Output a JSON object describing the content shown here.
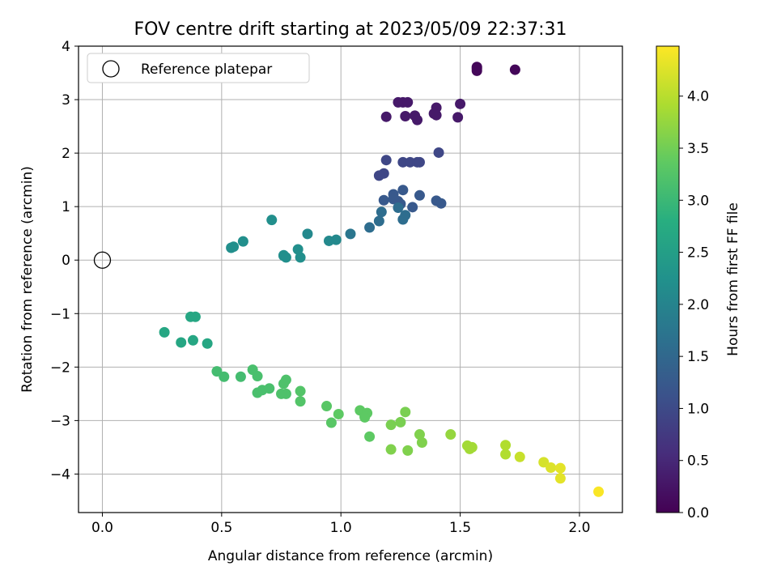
{
  "chart_data": {
    "type": "scatter",
    "title": "FOV centre drift starting at 2023/05/09 22:37:31",
    "xlabel": "Angular distance from reference (arcmin)",
    "ylabel": "Rotation from reference (arcmin)",
    "xlim": [
      -0.1,
      2.18
    ],
    "ylim": [
      -4.72,
      4.0
    ],
    "xticks": [
      0.0,
      0.5,
      1.0,
      1.5,
      2.0
    ],
    "xtick_labels": [
      "0.0",
      "0.5",
      "1.0",
      "1.5",
      "2.0"
    ],
    "yticks": [
      -4,
      -3,
      -2,
      -1,
      0,
      1,
      2,
      3,
      4
    ],
    "ytick_labels": [
      "−4",
      "−3",
      "−2",
      "−1",
      "0",
      "1",
      "2",
      "3",
      "4"
    ],
    "grid": true,
    "legend": {
      "position": "top-left",
      "entries": [
        "Reference platepar"
      ]
    },
    "reference_point": {
      "x": 0.0,
      "y": 0.0
    },
    "colorbar": {
      "label": "Hours from first FF file",
      "colormap": "viridis",
      "range": [
        0.0,
        4.48
      ],
      "ticks": [
        0.0,
        0.5,
        1.0,
        1.5,
        2.0,
        2.5,
        3.0,
        3.5,
        4.0
      ],
      "tick_labels": [
        "0.0",
        "0.5",
        "1.0",
        "1.5",
        "2.0",
        "2.5",
        "3.0",
        "3.5",
        "4.0"
      ]
    },
    "series": [
      {
        "x": [
          1.57,
          1.57,
          1.57,
          1.73,
          1.24,
          1.26,
          1.28,
          1.5,
          1.4,
          1.39,
          1.4,
          1.19,
          1.27,
          1.31,
          1.32,
          1.49,
          1.41,
          1.19,
          1.26,
          1.29,
          1.32,
          1.33,
          1.18,
          1.16,
          1.26,
          1.22,
          1.24,
          1.25,
          1.18,
          1.33,
          1.22,
          1.4,
          1.3,
          1.42,
          1.24,
          1.17,
          1.27,
          1.26,
          1.16,
          1.12,
          1.04,
          0.98,
          0.95,
          0.86,
          0.71,
          0.59,
          0.55,
          0.54,
          0.82,
          0.76,
          0.76,
          0.77,
          0.83,
          0.37,
          0.39,
          0.26,
          0.33,
          0.38,
          0.44,
          0.48,
          0.51,
          0.58,
          0.63,
          0.65,
          0.65,
          0.67,
          0.7,
          0.77,
          0.76,
          0.77,
          0.75,
          0.83,
          0.83,
          0.94,
          0.96,
          0.99,
          1.08,
          1.1,
          1.11,
          1.1,
          1.12,
          1.21,
          1.25,
          1.27,
          1.33,
          1.34,
          1.21,
          1.28,
          1.46,
          1.54,
          1.53,
          1.55,
          1.69,
          1.69,
          1.75,
          1.85,
          1.88,
          1.92,
          1.92,
          2.08
        ],
        "y": [
          3.61,
          3.58,
          3.54,
          3.56,
          2.95,
          2.95,
          2.95,
          2.92,
          2.85,
          2.74,
          2.71,
          2.68,
          2.69,
          2.7,
          2.62,
          2.67,
          2.01,
          1.87,
          1.83,
          1.83,
          1.83,
          1.83,
          1.62,
          1.58,
          1.31,
          1.23,
          1.1,
          1.05,
          1.12,
          1.21,
          1.14,
          1.11,
          0.99,
          1.06,
          0.98,
          0.9,
          0.84,
          0.76,
          0.73,
          0.61,
          0.49,
          0.38,
          0.36,
          0.49,
          0.75,
          0.35,
          0.25,
          0.23,
          0.2,
          0.08,
          0.09,
          0.05,
          0.05,
          -1.06,
          -1.06,
          -1.35,
          -1.54,
          -1.5,
          -1.56,
          -2.08,
          -2.18,
          -2.18,
          -2.05,
          -2.17,
          -2.48,
          -2.43,
          -2.4,
          -2.24,
          -2.31,
          -2.5,
          -2.5,
          -2.45,
          -2.64,
          -2.73,
          -3.04,
          -2.88,
          -2.81,
          -2.92,
          -2.86,
          -2.94,
          -3.3,
          -3.08,
          -3.03,
          -2.84,
          -3.26,
          -3.41,
          -3.54,
          -3.56,
          -3.26,
          -3.53,
          -3.47,
          -3.5,
          -3.46,
          -3.63,
          -3.68,
          -3.78,
          -3.88,
          -3.89,
          -4.08,
          -4.33
        ],
        "color_values": [
          0.07,
          0.07,
          0.07,
          0.07,
          0.3,
          0.3,
          0.3,
          0.3,
          0.3,
          0.3,
          0.3,
          0.3,
          0.3,
          0.3,
          0.3,
          0.3,
          0.95,
          0.95,
          0.95,
          0.95,
          0.95,
          0.95,
          0.95,
          0.95,
          1.25,
          1.25,
          1.25,
          1.25,
          1.25,
          1.25,
          1.25,
          1.25,
          1.25,
          1.25,
          1.6,
          1.6,
          1.6,
          1.6,
          1.6,
          1.6,
          1.75,
          2.1,
          2.1,
          2.1,
          2.2,
          2.2,
          2.2,
          2.2,
          2.2,
          2.2,
          2.2,
          2.2,
          2.2,
          2.65,
          2.65,
          2.65,
          2.65,
          2.65,
          2.65,
          3.1,
          3.1,
          3.1,
          3.15,
          3.15,
          3.15,
          3.15,
          3.15,
          3.2,
          3.2,
          3.2,
          3.2,
          3.25,
          3.25,
          3.3,
          3.3,
          3.35,
          3.35,
          3.35,
          3.35,
          3.35,
          3.35,
          3.55,
          3.55,
          3.55,
          3.6,
          3.6,
          3.6,
          3.6,
          3.75,
          3.85,
          3.85,
          3.85,
          3.95,
          3.95,
          4.1,
          4.2,
          4.25,
          4.3,
          4.3,
          4.45
        ]
      }
    ]
  }
}
